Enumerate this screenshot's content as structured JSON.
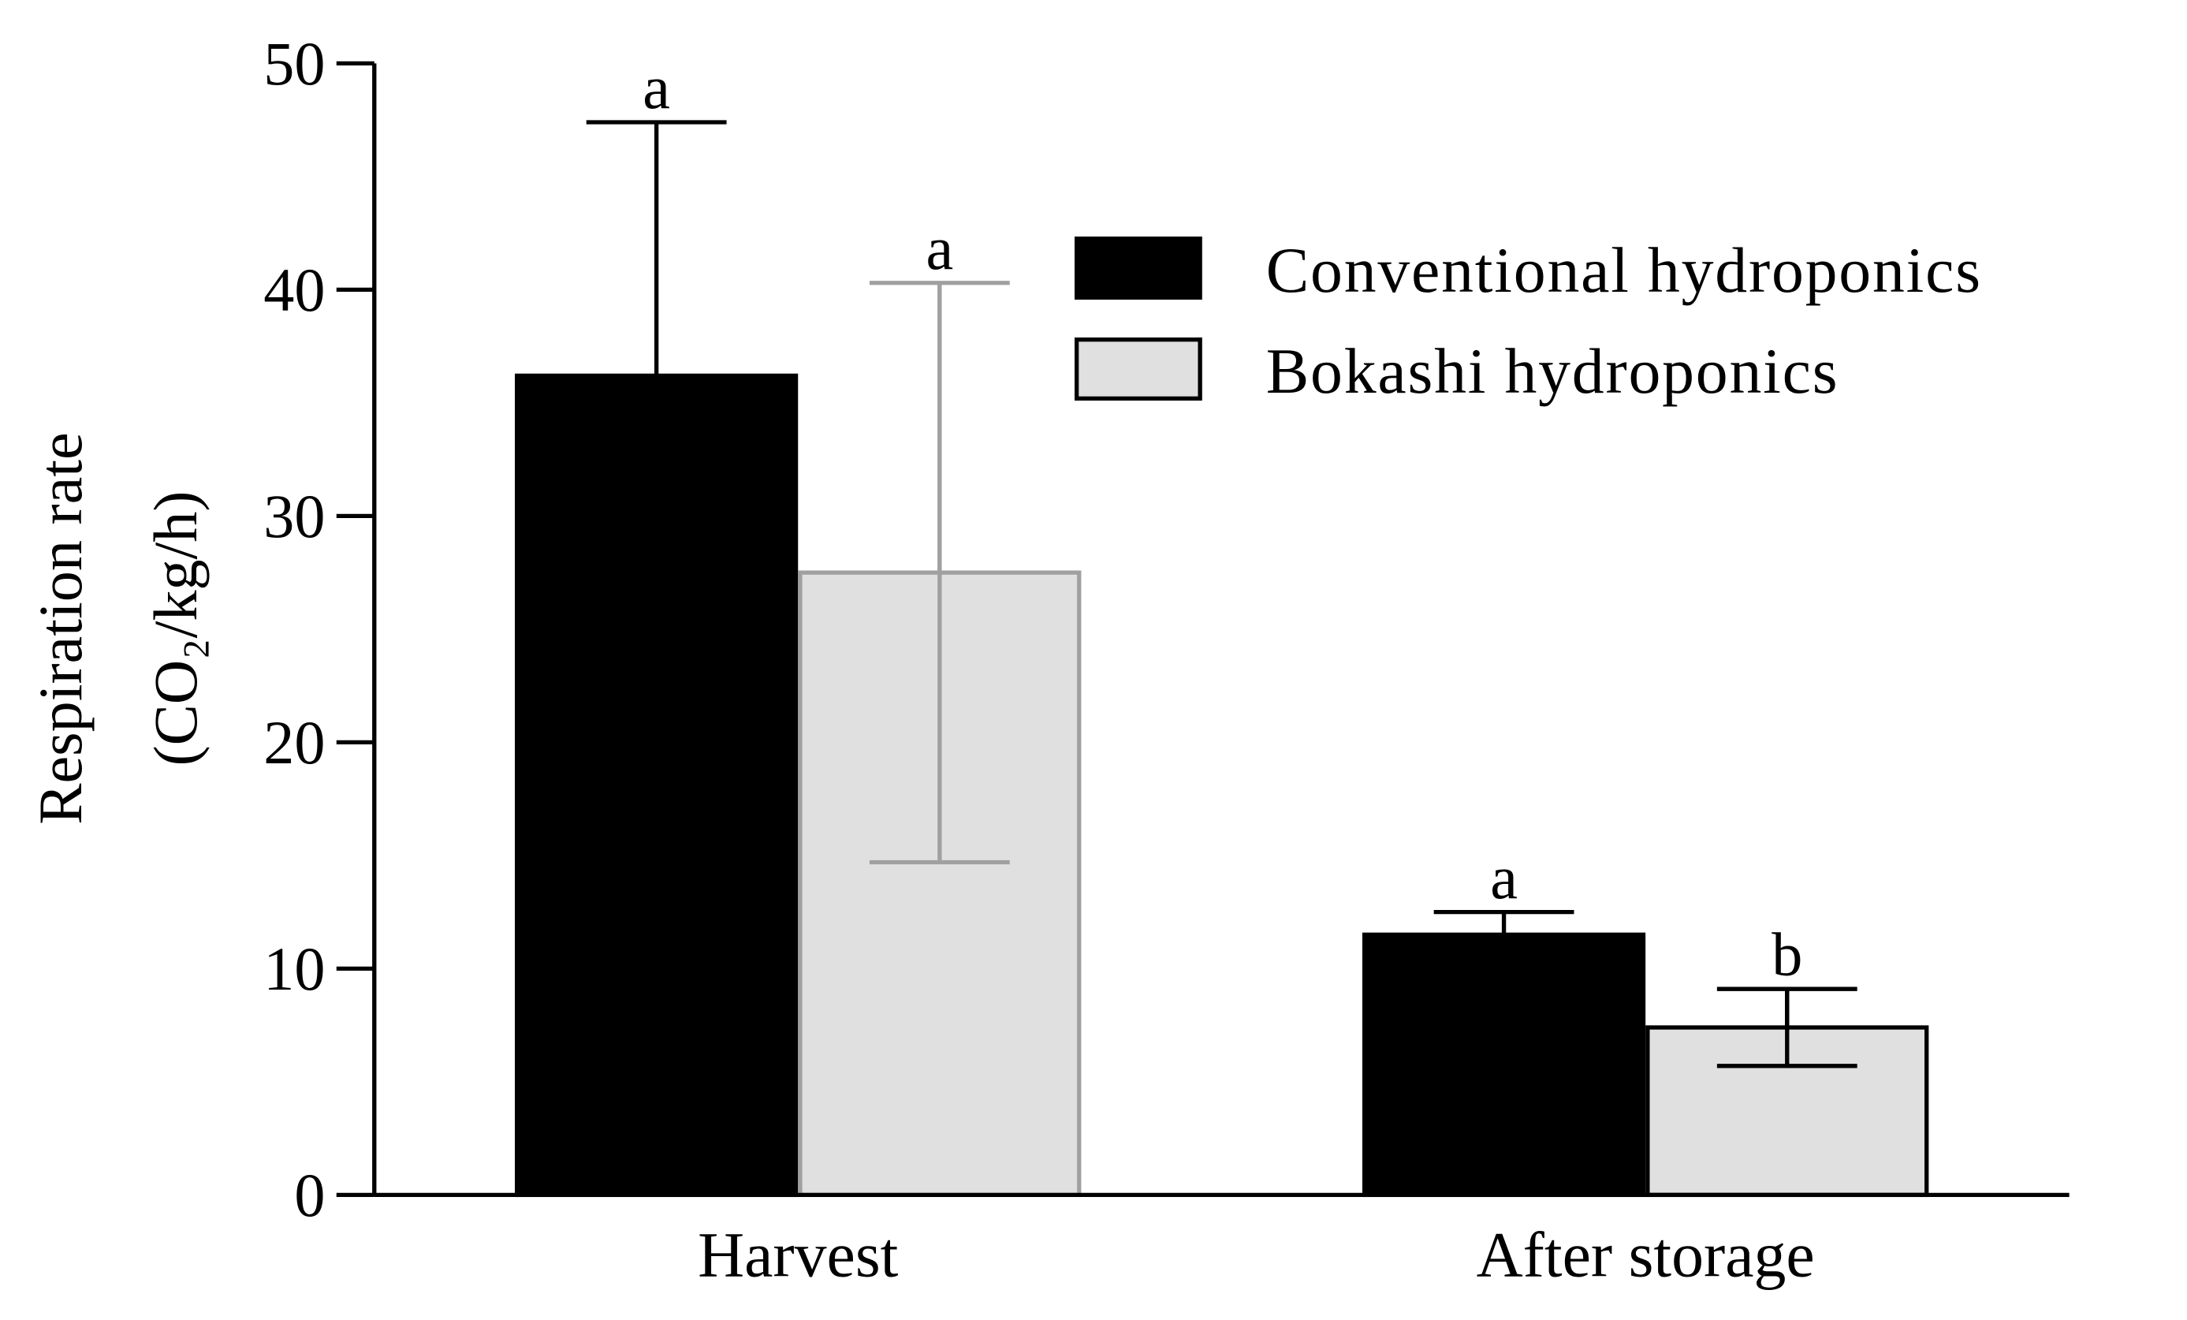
{
  "chart_data": {
    "type": "bar",
    "y_label": [
      "Respiration rate",
      "(CO₂/kg/h)"
    ],
    "categories": [
      "Harvest",
      "After storage"
    ],
    "series": [
      {
        "name": "Conventional hydroponics",
        "color": "#000000",
        "edge_colors": [
          "#000000",
          "#000000"
        ],
        "error_colors": [
          "#000000",
          "#000000"
        ],
        "values": [
          36.2,
          11.5
        ],
        "errors": [
          11.2,
          1.0
        ],
        "letters": [
          "a",
          "a"
        ]
      },
      {
        "name": "Bokashi hydroponics",
        "color": "#e0e0e0",
        "edge_colors": [
          "#a0a0a0",
          "#000000"
        ],
        "error_colors": [
          "#a0a0a0",
          "#000000"
        ],
        "values": [
          27.5,
          7.4
        ],
        "errors": [
          12.8,
          1.7
        ],
        "letters": [
          "a",
          "b"
        ]
      }
    ],
    "ylim": [
      0,
      50
    ],
    "yticks": [
      0,
      10,
      20,
      30,
      40,
      50
    ],
    "legend": "upper right"
  }
}
